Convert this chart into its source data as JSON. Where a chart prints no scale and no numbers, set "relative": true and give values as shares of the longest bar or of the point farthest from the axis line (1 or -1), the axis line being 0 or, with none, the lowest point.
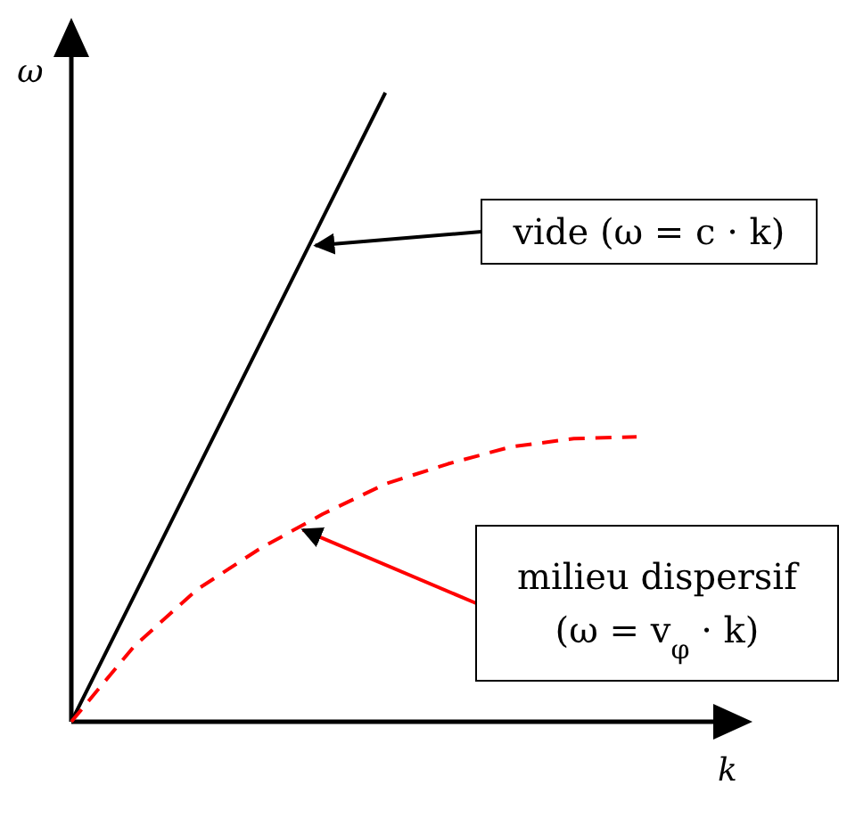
{
  "chart_data": {
    "type": "line",
    "relative": true,
    "xlabel": "k",
    "ylabel": "ω",
    "categories": [
      null,
      null,
      null,
      null,
      null,
      null,
      null,
      null,
      null,
      null
    ],
    "series": [
      {
        "color": "#000000",
        "line_style": "solid",
        "values": [
          0,
          0.2,
          0.4,
          0.6,
          0.8,
          1,
          null,
          null,
          null,
          null
        ]
      },
      {
        "color": "#ff0000",
        "line_style": "dashed",
        "values": [
          0,
          0.12,
          0.21,
          0.275,
          0.33,
          0.378,
          0.41,
          0.437,
          0.45,
          0.453
        ]
      }
    ],
    "annotations": [
      "vide (ω = c · k)",
      "milieu dispersif (ω = v$_{φ}$ · k)"
    ]
  }
}
